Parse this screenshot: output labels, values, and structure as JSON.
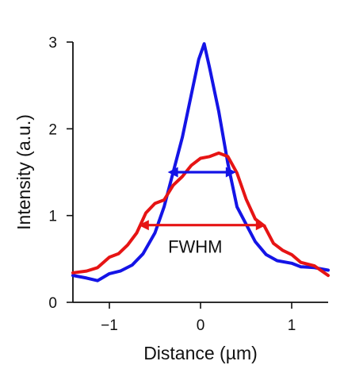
{
  "chart_data": {
    "type": "line",
    "xlabel": "Distance (µm)",
    "ylabel": "Intensity (a.u.)",
    "xlim": [
      -1.4,
      1.4
    ],
    "ylim": [
      0,
      3
    ],
    "x_ticks": [
      -1,
      0,
      1
    ],
    "x_tick_labels": [
      "−1",
      "0",
      "1"
    ],
    "y_ticks": [
      0,
      1,
      2,
      3
    ],
    "y_tick_labels": [
      "0",
      "1",
      "2",
      "3"
    ],
    "grid": false,
    "legend": "none",
    "series": [
      {
        "color": "#1414e6",
        "x": [
          -1.4,
          -1.25,
          -1.13,
          -1.0,
          -0.88,
          -0.75,
          -0.63,
          -0.5,
          -0.4,
          -0.3,
          -0.2,
          -0.1,
          -0.02,
          0.04,
          0.1,
          0.2,
          0.3,
          0.4,
          0.5,
          0.6,
          0.72,
          0.84,
          1.0,
          1.1,
          1.25,
          1.4
        ],
        "y": [
          0.31,
          0.28,
          0.25,
          0.33,
          0.36,
          0.43,
          0.56,
          0.8,
          1.1,
          1.5,
          1.9,
          2.4,
          2.8,
          2.98,
          2.7,
          2.2,
          1.6,
          1.1,
          0.9,
          0.7,
          0.55,
          0.48,
          0.45,
          0.41,
          0.4,
          0.37
        ]
      },
      {
        "color": "#e61414",
        "x": [
          -1.4,
          -1.25,
          -1.13,
          -1.0,
          -0.9,
          -0.8,
          -0.7,
          -0.6,
          -0.5,
          -0.4,
          -0.3,
          -0.2,
          -0.1,
          0.0,
          0.1,
          0.2,
          0.3,
          0.4,
          0.5,
          0.6,
          0.7,
          0.8,
          0.9,
          1.0,
          1.1,
          1.25,
          1.4
        ],
        "y": [
          0.34,
          0.36,
          0.4,
          0.52,
          0.56,
          0.66,
          0.8,
          1.03,
          1.14,
          1.18,
          1.35,
          1.45,
          1.58,
          1.66,
          1.68,
          1.72,
          1.68,
          1.49,
          1.19,
          0.96,
          0.88,
          0.68,
          0.6,
          0.55,
          0.46,
          0.42,
          0.31
        ]
      }
    ],
    "annotations": [
      {
        "text": "",
        "color": "#1414e6",
        "from": [
          -0.36,
          1.5
        ],
        "to": [
          0.39,
          1.5
        ]
      },
      {
        "text": "FWHM",
        "color": "#e61414",
        "from": [
          -0.68,
          0.89
        ],
        "to": [
          0.72,
          0.89
        ]
      }
    ]
  }
}
